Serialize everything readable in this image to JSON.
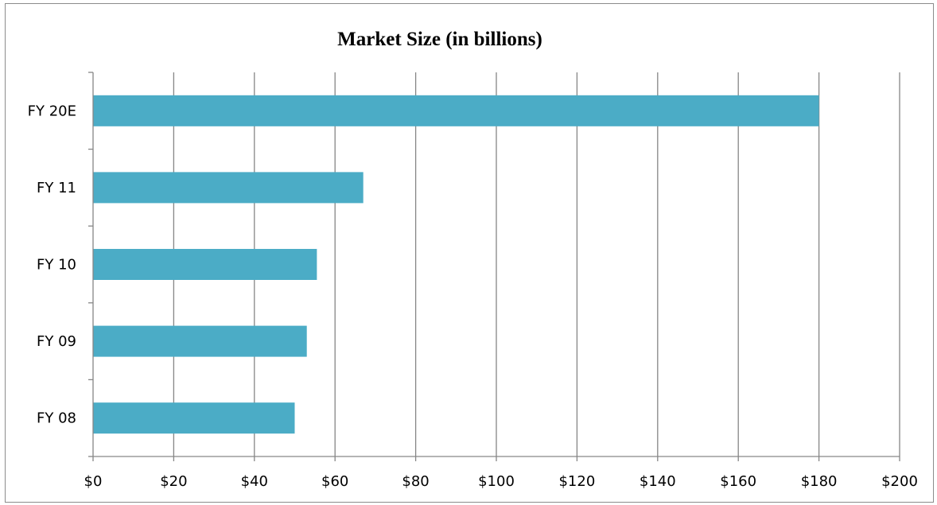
{
  "chart_data": {
    "type": "bar",
    "orientation": "horizontal",
    "title": "Market Size (in billions)",
    "xlabel": "",
    "ylabel": "",
    "categories": [
      "FY 08",
      "FY 09",
      "FY 10",
      "FY 11",
      "FY 20E"
    ],
    "values": [
      50,
      53,
      55.5,
      67,
      180
    ],
    "xlim": [
      0,
      200
    ],
    "x_ticks": [
      "$0",
      "$20",
      "$40",
      "$60",
      "$80",
      "$100",
      "$120",
      "$140",
      "$160",
      "$180",
      "$200"
    ],
    "grid": "vertical",
    "legend": "none",
    "bar_color": "#4BACC6"
  }
}
